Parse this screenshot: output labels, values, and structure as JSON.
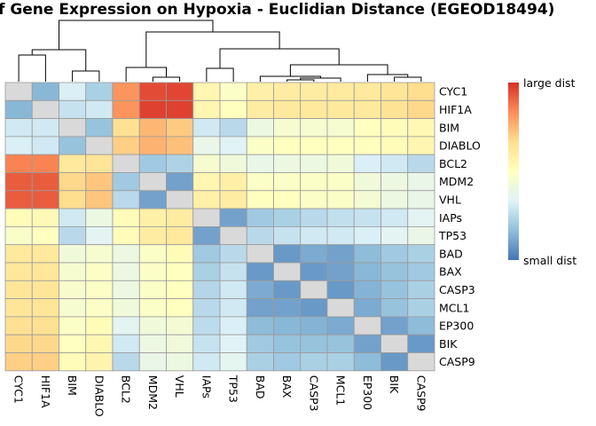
{
  "chart_data": {
    "type": "heatmap",
    "title": "f Gene Expression on Hypoxia - Euclidian Distance  (EGEOD18494)",
    "row_labels": [
      "CYC1",
      "HIF1A",
      "BIM",
      "DIABLO",
      "BCL2",
      "MDM2",
      "VHL",
      "IAPs",
      "TP53",
      "BAD",
      "BAX",
      "CASP3",
      "MCL1",
      "EP300",
      "BIK",
      "CASP9"
    ],
    "col_labels": [
      "CYC1",
      "HIF1A",
      "BIM",
      "DIABLO",
      "BCL2",
      "MDM2",
      "VHL",
      "IAPs",
      "TP53",
      "BAD",
      "BAX",
      "CASP3",
      "MCL1",
      "EP300",
      "BIK",
      "CASP9"
    ],
    "legend": {
      "high_label": "large dist",
      "low_label": "small dist"
    },
    "color_scale": [
      "#4575b4",
      "#91bfdb",
      "#e0f3f8",
      "#ffffbf",
      "#fee090",
      "#fc8d59",
      "#d73027"
    ],
    "missing_color": "#d9d9d9",
    "values": [
      [
        null,
        0.15,
        0.32,
        0.22,
        0.82,
        0.95,
        0.96,
        0.55,
        0.48,
        0.58,
        0.6,
        0.6,
        0.61,
        0.62,
        0.64,
        0.67
      ],
      [
        0.15,
        null,
        0.28,
        0.3,
        0.82,
        0.97,
        0.97,
        0.55,
        0.5,
        0.6,
        0.62,
        0.62,
        0.62,
        0.62,
        0.65,
        0.68
      ],
      [
        0.3,
        0.3,
        null,
        0.18,
        0.66,
        0.75,
        0.71,
        0.3,
        0.25,
        0.4,
        0.45,
        0.45,
        0.45,
        0.5,
        0.52,
        0.54
      ],
      [
        0.32,
        0.3,
        0.18,
        null,
        0.7,
        0.76,
        0.73,
        0.38,
        0.34,
        0.48,
        0.5,
        0.5,
        0.5,
        0.5,
        0.52,
        0.55
      ],
      [
        0.85,
        0.85,
        0.62,
        0.64,
        null,
        0.2,
        0.23,
        0.45,
        0.42,
        0.38,
        0.4,
        0.4,
        0.42,
        0.32,
        0.3,
        0.25
      ],
      [
        0.92,
        0.92,
        0.68,
        0.72,
        0.2,
        null,
        0.1,
        0.55,
        0.58,
        0.48,
        0.48,
        0.48,
        0.48,
        0.42,
        0.4,
        0.38
      ],
      [
        0.92,
        0.92,
        0.67,
        0.72,
        0.25,
        0.1,
        null,
        0.58,
        0.6,
        0.5,
        0.5,
        0.48,
        0.48,
        0.44,
        0.4,
        0.38
      ],
      [
        0.52,
        0.53,
        0.3,
        0.4,
        0.52,
        0.58,
        0.6,
        null,
        0.1,
        0.2,
        0.22,
        0.25,
        0.27,
        0.28,
        0.3,
        0.35
      ],
      [
        0.47,
        0.5,
        0.25,
        0.35,
        0.52,
        0.6,
        0.62,
        0.1,
        null,
        0.25,
        0.28,
        0.3,
        0.3,
        0.32,
        0.35,
        0.38
      ],
      [
        0.62,
        0.62,
        0.42,
        0.45,
        0.4,
        0.48,
        0.52,
        0.2,
        0.25,
        null,
        0.08,
        0.12,
        0.1,
        0.16,
        0.2,
        0.22
      ],
      [
        0.63,
        0.63,
        0.45,
        0.48,
        0.4,
        0.48,
        0.5,
        0.22,
        0.28,
        0.08,
        null,
        0.08,
        0.1,
        0.15,
        0.18,
        0.2
      ],
      [
        0.64,
        0.64,
        0.46,
        0.48,
        0.4,
        0.48,
        0.5,
        0.24,
        0.3,
        0.12,
        0.08,
        null,
        0.08,
        0.14,
        0.18,
        0.22
      ],
      [
        0.64,
        0.64,
        0.45,
        0.48,
        0.42,
        0.48,
        0.5,
        0.25,
        0.3,
        0.1,
        0.1,
        0.08,
        null,
        0.12,
        0.18,
        0.22
      ],
      [
        0.66,
        0.66,
        0.48,
        0.52,
        0.35,
        0.42,
        0.44,
        0.26,
        0.32,
        0.16,
        0.15,
        0.14,
        0.12,
        null,
        0.1,
        0.16
      ],
      [
        0.68,
        0.68,
        0.5,
        0.55,
        0.3,
        0.4,
        0.42,
        0.28,
        0.34,
        0.2,
        0.18,
        0.18,
        0.18,
        0.1,
        null,
        0.08
      ],
      [
        0.7,
        0.7,
        0.52,
        0.56,
        0.25,
        0.38,
        0.4,
        0.3,
        0.36,
        0.22,
        0.2,
        0.22,
        0.22,
        0.16,
        0.08,
        null
      ]
    ]
  }
}
